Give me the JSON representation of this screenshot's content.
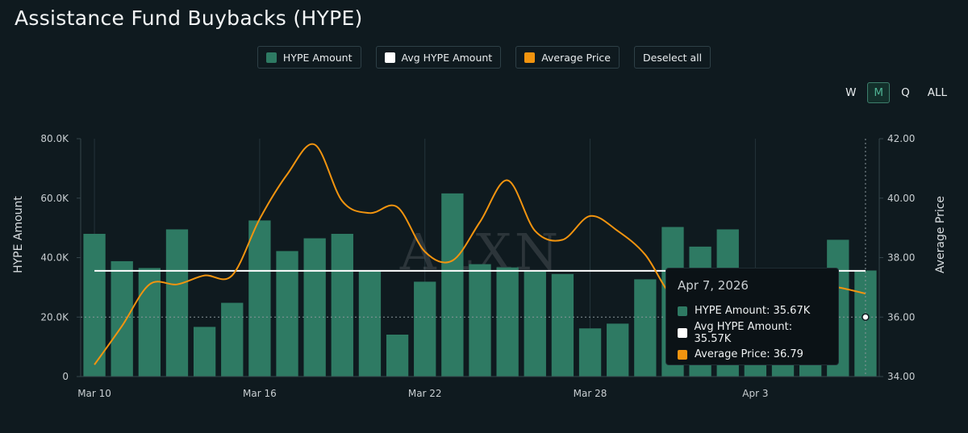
{
  "page": {
    "title": "Assistance Fund Buybacks (HYPE)"
  },
  "legend": [
    {
      "label": "HYPE Amount",
      "color": "#2e7a63"
    },
    {
      "label": "Avg HYPE Amount",
      "color": "#ffffff"
    },
    {
      "label": "Average Price",
      "color": "#f2940f"
    },
    {
      "label": "Deselect all",
      "color": ""
    }
  ],
  "range_buttons": [
    {
      "label": "W",
      "active": false
    },
    {
      "label": "M",
      "active": true
    },
    {
      "label": "Q",
      "active": false
    },
    {
      "label": "ALL",
      "active": false
    }
  ],
  "watermark": "ALXN",
  "tooltip": {
    "date": "Apr 7, 2026",
    "rows": [
      {
        "label": "HYPE Amount: 35.67K",
        "color": "#2e7a63"
      },
      {
        "label": "Avg HYPE Amount: 35.57K",
        "color": "#ffffff"
      },
      {
        "label": "Average Price: 36.79",
        "color": "#f2940f"
      }
    ]
  },
  "chart_data": {
    "type": "bar",
    "x_tick_labels": [
      "Mar 10",
      "Mar 16",
      "Mar 22",
      "Mar 28",
      "Apr 3"
    ],
    "x_tick_index": [
      0,
      6,
      12,
      18,
      24
    ],
    "categories": [
      "Mar 10",
      "Mar 11",
      "Mar 12",
      "Mar 13",
      "Mar 14",
      "Mar 15",
      "Mar 16",
      "Mar 17",
      "Mar 18",
      "Mar 19",
      "Mar 20",
      "Mar 21",
      "Mar 22",
      "Mar 23",
      "Mar 24",
      "Mar 25",
      "Mar 26",
      "Mar 27",
      "Mar 28",
      "Mar 29",
      "Mar 30",
      "Mar 31",
      "Apr 1",
      "Apr 2",
      "Apr 3",
      "Apr 4",
      "Apr 5",
      "Apr 6",
      "Apr 7"
    ],
    "series": [
      {
        "name": "HYPE Amount",
        "axis": "left",
        "kind": "bar",
        "values": [
          48000,
          38800,
          36500,
          49500,
          16700,
          24800,
          52500,
          42200,
          46500,
          48000,
          35500,
          14100,
          31900,
          61600,
          37800,
          36700,
          35600,
          34500,
          16200,
          17800,
          32700,
          50300,
          43700,
          49500,
          35600,
          35600,
          35600,
          46000,
          35670
        ]
      },
      {
        "name": "Avg HYPE Amount",
        "axis": "left",
        "kind": "line",
        "values": [
          35570,
          35570,
          35570,
          35570,
          35570,
          35570,
          35570,
          35570,
          35570,
          35570,
          35570,
          35570,
          35570,
          35570,
          35570,
          35570,
          35570,
          35570,
          35570,
          35570,
          35570,
          35570,
          35570,
          35570,
          35570,
          35570,
          35570,
          35570,
          35570
        ]
      },
      {
        "name": "Average Price",
        "axis": "right",
        "kind": "line",
        "values": [
          34.4,
          35.7,
          37.1,
          37.1,
          37.4,
          37.4,
          39.3,
          40.8,
          41.8,
          39.9,
          39.5,
          39.7,
          38.2,
          37.9,
          39.2,
          40.6,
          38.9,
          38.6,
          39.4,
          38.9,
          38.1,
          36.7,
          36.7,
          36.9,
          37.1,
          37.1,
          37.1,
          37.0,
          36.79
        ]
      }
    ],
    "ylabel": "HYPE Amount",
    "ylabel_right": "Average Price",
    "ylim": [
      0,
      80000
    ],
    "ylim_right": [
      34,
      42
    ],
    "y_ticks": [
      "0",
      "20.0K",
      "40.0K",
      "60.0K",
      "80.0K"
    ],
    "y_ticks_right": [
      "34.00",
      "36.00",
      "38.00",
      "40.00",
      "42.00"
    ],
    "grid": true,
    "legend_position": "top-center"
  }
}
